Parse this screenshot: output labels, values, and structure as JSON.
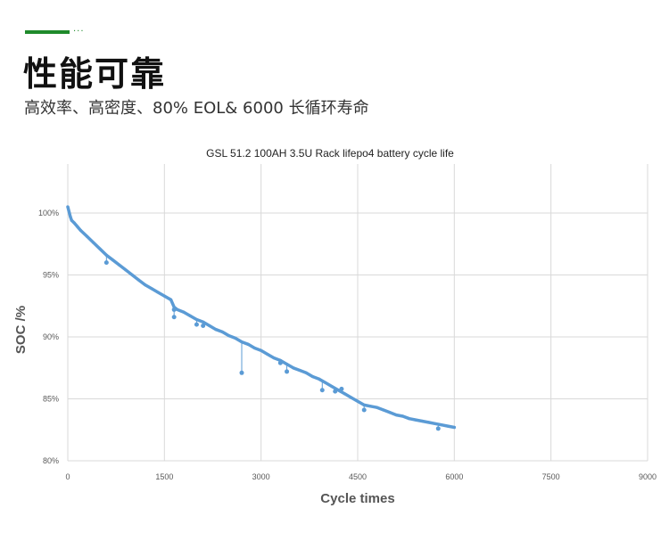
{
  "header": {
    "title": "性能可靠",
    "subtitle": "高效率、高密度、80% EOL& 6000 长循环寿命",
    "accent_color": "#1f8a2b",
    "accent_dots": "···"
  },
  "chart_data": {
    "type": "line",
    "title": "GSL 51.2 100AH 3.5U Rack lifepo4 battery cycle life",
    "xlabel": "Cycle times",
    "ylabel": "SOC /%",
    "xlim": [
      0,
      9000
    ],
    "ylim": [
      80,
      104
    ],
    "x_ticks": [
      0,
      1500,
      3000,
      4500,
      6000,
      7500,
      9000
    ],
    "y_ticks": [
      80,
      85,
      90,
      95,
      100
    ],
    "x_tick_labels": [
      "0",
      "1500",
      "3000",
      "4500",
      "6000",
      "7500",
      "9000"
    ],
    "y_tick_labels": [
      "80%",
      "85%",
      "90%",
      "95%",
      "100%"
    ],
    "grid": true,
    "line_color": "#5b9bd5",
    "series": [
      {
        "x": [
          0,
          20,
          40,
          60,
          100,
          150,
          200,
          300,
          400,
          500,
          600,
          700,
          800,
          900,
          1000,
          1100,
          1200,
          1300,
          1400,
          1500,
          1600,
          1650,
          1700,
          1800,
          1900,
          2000,
          2100,
          2200,
          2300,
          2400,
          2500,
          2600,
          2700,
          2800,
          2900,
          3000,
          3100,
          3200,
          3300,
          3400,
          3500,
          3600,
          3700,
          3800,
          3900,
          4000,
          4100,
          4200,
          4300,
          4400,
          4500,
          4600,
          4700,
          4800,
          4900,
          5000,
          5100,
          5200,
          5300,
          5400,
          5500,
          5600,
          5700,
          5800,
          5900,
          6000
        ],
        "y": [
          100.5,
          100.1,
          99.7,
          99.4,
          99.2,
          98.9,
          98.6,
          98.1,
          97.6,
          97.1,
          96.6,
          96.2,
          95.8,
          95.4,
          95.0,
          94.6,
          94.2,
          93.9,
          93.6,
          93.3,
          93.0,
          92.4,
          92.2,
          92.0,
          91.7,
          91.4,
          91.2,
          90.9,
          90.6,
          90.4,
          90.1,
          89.9,
          89.6,
          89.4,
          89.1,
          88.9,
          88.6,
          88.3,
          88.1,
          87.8,
          87.5,
          87.3,
          87.1,
          86.8,
          86.6,
          86.3,
          86.0,
          85.7,
          85.4,
          85.1,
          84.8,
          84.5,
          84.4,
          84.3,
          84.1,
          83.9,
          83.7,
          83.6,
          83.4,
          83.3,
          83.2,
          83.1,
          83.0,
          82.9,
          82.8,
          82.7
        ]
      }
    ],
    "outliers": [
      {
        "x": 600,
        "y": 96.0
      },
      {
        "x": 1650,
        "y": 91.6
      },
      {
        "x": 1650,
        "y": 92.2
      },
      {
        "x": 2000,
        "y": 91.0
      },
      {
        "x": 2100,
        "y": 90.9
      },
      {
        "x": 2700,
        "y": 87.1
      },
      {
        "x": 3300,
        "y": 87.9
      },
      {
        "x": 3400,
        "y": 87.2
      },
      {
        "x": 3950,
        "y": 85.7
      },
      {
        "x": 4150,
        "y": 85.6
      },
      {
        "x": 4250,
        "y": 85.8
      },
      {
        "x": 4600,
        "y": 84.1
      },
      {
        "x": 5750,
        "y": 82.6
      }
    ]
  }
}
